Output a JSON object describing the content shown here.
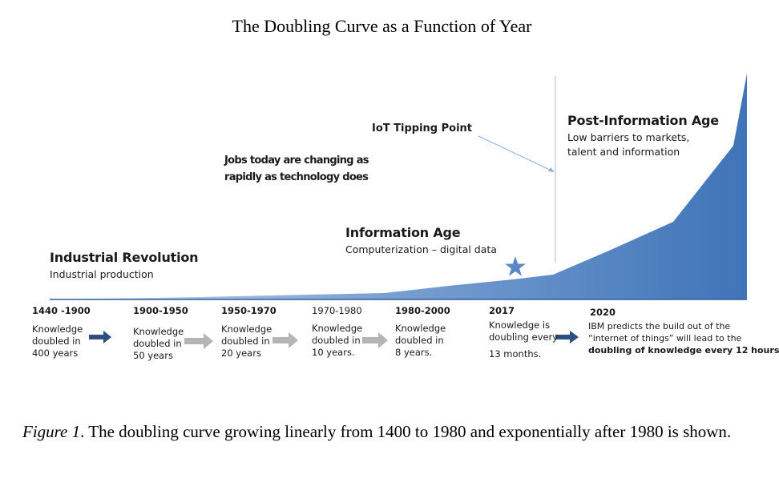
{
  "title": "The Doubling Curve as a Function of Year",
  "eras": [
    {
      "title": "Industrial Revolution",
      "subtitle": "Industrial production"
    },
    {
      "title": "Information Age",
      "subtitle": "Computerization – digital data"
    },
    {
      "title": "Post-Information Age",
      "subtitle_lines": [
        "Low barriers to markets,",
        "talent and information"
      ]
    }
  ],
  "callouts": {
    "iot": "IoT Tipping Point",
    "jobs_lines": [
      "Jobs today are changing as",
      "rapidly as technology does"
    ]
  },
  "timeline": [
    {
      "period": "1440 -1900",
      "lines": [
        "Knowledge",
        "doubled in",
        "400 years"
      ]
    },
    {
      "period": "1900-1950",
      "lines": [
        "Knowledge",
        "doubled in",
        "50 years"
      ]
    },
    {
      "period": "1950-1970",
      "lines": [
        "Knowledge",
        "doubled in",
        "20 years"
      ]
    },
    {
      "period": "1970-1980",
      "lines": [
        "Knowledge",
        "doubled in",
        "10 years."
      ]
    },
    {
      "period": "1980-2000",
      "lines": [
        "Knowledge",
        "doubled in",
        "8 years."
      ]
    },
    {
      "period": "2017",
      "lines": [
        "Knowledge is",
        "doubling every",
        "13 months."
      ]
    },
    {
      "period": "2020",
      "lines": [
        "IBM predicts the build out of  the",
        "“internet of things” will lead to the",
        "doubling of knowledge every 12 hours"
      ]
    }
  ],
  "caption": {
    "figure_label": "Figure 1",
    "text": ". The doubling curve growing linearly from 1400 to 1980 and exponentially after 1980 is shown."
  },
  "colors": {
    "curve_fill": "#3f74b8",
    "curve_light": "#c9d8ec",
    "arrow_dark": "#2f4f80",
    "arrow_gray": "#b5b5b5",
    "star": "#5b87c7",
    "iot_line": "#8fb1dc"
  }
}
